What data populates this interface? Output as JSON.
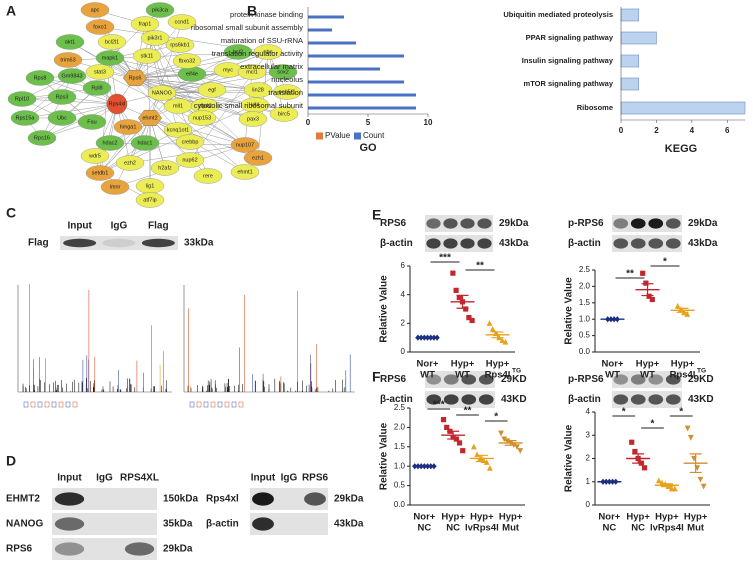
{
  "panel_labels": [
    "A",
    "B",
    "C",
    "D",
    "E",
    "F"
  ],
  "network": {
    "nodes": [
      {
        "label": "apc",
        "color": "#e8a33d"
      },
      {
        "label": "pik3ca",
        "color": "#6cbf4a"
      },
      {
        "label": "foxo1",
        "color": "#e8a33d"
      },
      {
        "label": "frap1",
        "color": "#ecec55"
      },
      {
        "label": "ccnd1",
        "color": "#ecec55"
      },
      {
        "label": "akt1",
        "color": "#6cbf4a"
      },
      {
        "label": "bcl2l1",
        "color": "#ecec55"
      },
      {
        "label": "pik3r1",
        "color": "#ecec55"
      },
      {
        "label": "rps6kb1",
        "color": "#ecec55"
      },
      {
        "label": "trim63",
        "color": "#e8a33d"
      },
      {
        "label": "mapk1",
        "color": "#6cbf4a"
      },
      {
        "label": "stk11",
        "color": "#ecec55"
      },
      {
        "label": "stat3",
        "color": "#ecec55"
      },
      {
        "label": "eif4e",
        "color": "#6cbf4a"
      },
      {
        "label": "fbxo32",
        "color": "#ecec55"
      },
      {
        "label": "Rps6",
        "color": "#e8a33d"
      },
      {
        "label": "bcl2",
        "color": "#6cbf4a"
      },
      {
        "label": "nbn",
        "color": "#ecec55"
      },
      {
        "label": "myc",
        "color": "#ecec55"
      },
      {
        "label": "mcl1",
        "color": "#ecec55"
      },
      {
        "label": "sox2",
        "color": "#6cbf4a"
      },
      {
        "label": "egf",
        "color": "#ecec55"
      },
      {
        "label": "lin28",
        "color": "#ecec55"
      },
      {
        "label": "pou5f1",
        "color": "#ecec55"
      },
      {
        "label": "NANOG",
        "color": "#ecec55"
      },
      {
        "label": "mll1",
        "color": "#ecec55"
      },
      {
        "label": "zfp42",
        "color": "#ecec55"
      },
      {
        "label": "klf4",
        "color": "#ecec55"
      },
      {
        "label": "nup153",
        "color": "#ecec55"
      },
      {
        "label": "pax3",
        "color": "#ecec55"
      },
      {
        "label": "birc5",
        "color": "#ecec55"
      },
      {
        "label": "ehmt2",
        "color": "#e8a33d"
      },
      {
        "label": "hmga1",
        "color": "#e8a33d"
      },
      {
        "label": "hdac2",
        "color": "#6cbf4a"
      },
      {
        "label": "hdac1",
        "color": "#6cbf4a"
      },
      {
        "label": "kcnq1ot1",
        "color": "#ecec55"
      },
      {
        "label": "crebbp",
        "color": "#ecec55"
      },
      {
        "label": "nup62",
        "color": "#ecec55"
      },
      {
        "label": "nup107",
        "color": "#e8a33d"
      },
      {
        "label": "h2afz",
        "color": "#ecec55"
      },
      {
        "label": "ezh2",
        "color": "#ecec55"
      },
      {
        "label": "wdr5",
        "color": "#ecec55"
      },
      {
        "label": "rere",
        "color": "#ecec55"
      },
      {
        "label": "ehmt1",
        "color": "#ecec55"
      },
      {
        "label": "ezh1",
        "color": "#e8a33d"
      },
      {
        "label": "setdb1",
        "color": "#e8a33d"
      },
      {
        "label": "lig1",
        "color": "#ecec55"
      },
      {
        "label": "lmnr",
        "color": "#e8a33d"
      },
      {
        "label": "atf7ip",
        "color": "#ecec55"
      },
      {
        "label": "Rps8",
        "color": "#6cbf4a"
      },
      {
        "label": "Gm9843",
        "color": "#6cbf4a"
      },
      {
        "label": "Rpl10",
        "color": "#6cbf4a"
      },
      {
        "label": "Rps3",
        "color": "#6cbf4a"
      },
      {
        "label": "Rps15a",
        "color": "#6cbf4a"
      },
      {
        "label": "Ubc",
        "color": "#6cbf4a"
      },
      {
        "label": "Fau",
        "color": "#6cbf4a"
      },
      {
        "label": "Rps16",
        "color": "#6cbf4a"
      },
      {
        "label": "Rpl8",
        "color": "#6cbf4a"
      },
      {
        "label": "Rps4xl",
        "color": "#e2502f"
      }
    ]
  },
  "chart_data": [
    {
      "type": "hbar",
      "title": "GO",
      "categories": [
        "protein kinase binding",
        "ribosomal small subunit assembly",
        "maturation of SSU-rRNA",
        "translation regulator activity",
        "extracellular matrix",
        "nucleolus",
        "translation",
        "cytosolic small ribosomal subunit"
      ],
      "series": [
        {
          "name": "PValue",
          "color": "#e07b39",
          "values": [
            null,
            null,
            null,
            null,
            null,
            null,
            null,
            null
          ]
        },
        {
          "name": "Count",
          "color": "#4a72c4",
          "values": [
            3,
            2,
            4,
            8,
            6,
            8,
            9,
            9
          ]
        }
      ],
      "xlim": [
        0,
        10
      ],
      "xticks": [
        0,
        5,
        10
      ]
    },
    {
      "type": "hbar",
      "title": "KEGG",
      "categories": [
        "Ubiquitin mediated proteolysis",
        "PPAR signaling pathway",
        "Insulin signaling pathway",
        "mTOR signaling pathway",
        "Ribosome"
      ],
      "values": [
        1,
        2,
        1,
        1,
        7
      ],
      "color": "#bcd3f0",
      "xlim": [
        0,
        7
      ],
      "xticks": [
        0,
        2,
        4,
        6
      ]
    },
    {
      "type": "dotplot",
      "ylabel": "Relative Value",
      "ylim": [
        0,
        6
      ],
      "yticks": [
        0,
        2,
        4,
        6
      ],
      "significance": [
        "***",
        "**"
      ],
      "groups": [
        {
          "label_lines": [
            "Nor+",
            "WT"
          ],
          "color": "#1c2f80",
          "marker": "diamond",
          "values": [
            1,
            1,
            1,
            1,
            1,
            1,
            1
          ],
          "mean": 1,
          "sem": 0.02
        },
        {
          "label_lines": [
            "Hyp+",
            "WT"
          ],
          "color": "#c1272d",
          "marker": "square",
          "values": [
            5.5,
            4.3,
            3.8,
            3.5,
            3.0,
            2.4,
            2.2
          ],
          "mean": 3.5,
          "sem": 0.45
        },
        {
          "label_lines": [
            "Hyp+",
            "Rps4l"
          ],
          "sup": "TG",
          "color": "#e8a11b",
          "marker": "triangle",
          "values": [
            2.0,
            1.6,
            1.3,
            1.0,
            0.8,
            0.7
          ],
          "mean": 1.2,
          "sem": 0.2
        }
      ]
    },
    {
      "type": "dotplot",
      "ylabel": "Relative Value",
      "ylim": [
        0,
        2.5
      ],
      "yticks": [
        {
          "value": 0,
          "label": "0.0"
        },
        {
          "value": 0.5,
          "label": "0.5"
        },
        {
          "value": 1,
          "label": "1.0"
        },
        {
          "value": 1.5,
          "label": "1.5"
        },
        {
          "value": 2,
          "label": "2.0"
        },
        {
          "value": 2.5,
          "label": "2.5"
        }
      ],
      "significance": [
        "**",
        "*"
      ],
      "groups": [
        {
          "label_lines": [
            "Nor+",
            "WT"
          ],
          "color": "#1c2f80",
          "marker": "diamond",
          "values": [
            1,
            1,
            1,
            1
          ],
          "mean": 1,
          "sem": 0.01
        },
        {
          "label_lines": [
            "Hyp+",
            "WT"
          ],
          "color": "#c1272d",
          "marker": "square",
          "values": [
            2.4,
            2.1,
            1.7,
            1.6
          ],
          "mean": 1.9,
          "sem": 0.18
        },
        {
          "label_lines": [
            "Hyp+",
            "Rps4l"
          ],
          "sup": "TG",
          "color": "#e8a11b",
          "marker": "triangle",
          "values": [
            1.4,
            1.3,
            1.2,
            1.15
          ],
          "mean": 1.27,
          "sem": 0.06
        }
      ]
    },
    {
      "type": "dotplot",
      "ylabel": "Relative Value",
      "ylim": [
        0,
        2.5
      ],
      "yticks": [
        {
          "value": 0,
          "label": "0.0"
        },
        {
          "value": 0.5,
          "label": "0.5"
        },
        {
          "value": 1,
          "label": "1.0"
        },
        {
          "value": 1.5,
          "label": "1.5"
        },
        {
          "value": 2,
          "label": "2.0"
        },
        {
          "value": 2.5,
          "label": "2.5"
        }
      ],
      "significance": [
        "***",
        "**",
        "*"
      ],
      "groups": [
        {
          "label_lines": [
            "Nor+",
            "NC"
          ],
          "color": "#1c2f80",
          "marker": "diamond",
          "values": [
            1,
            1,
            1,
            1,
            1,
            1,
            1
          ],
          "mean": 1,
          "sem": 0.01
        },
        {
          "label_lines": [
            "Hyp+",
            "NC"
          ],
          "color": "#c1272d",
          "marker": "square",
          "values": [
            2.2,
            2.0,
            1.9,
            1.75,
            1.7,
            1.6,
            1.4
          ],
          "mean": 1.8,
          "sem": 0.1
        },
        {
          "label_lines": [
            "Hyp+",
            "lvRps4l"
          ],
          "color": "#e8a11b",
          "marker": "triangle",
          "values": [
            1.5,
            1.3,
            1.2,
            1.15,
            1.1,
            0.95
          ],
          "mean": 1.2,
          "sem": 0.08
        },
        {
          "label_lines": [
            "Hyp+",
            "Mut"
          ],
          "color": "#d18f2c",
          "marker": "triangle-down",
          "values": [
            1.85,
            1.7,
            1.65,
            1.6,
            1.55,
            1.5,
            1.4
          ],
          "mean": 1.6,
          "sem": 0.06
        }
      ]
    },
    {
      "type": "dotplot",
      "ylabel": "Relative Value",
      "ylim": [
        0,
        4
      ],
      "yticks": [
        0,
        1,
        2,
        3,
        4
      ],
      "significance": [
        "*",
        "*",
        "*"
      ],
      "groups": [
        {
          "label_lines": [
            "Nor+",
            "NC"
          ],
          "color": "#1c2f80",
          "marker": "diamond",
          "values": [
            1,
            1,
            1,
            1,
            1
          ],
          "mean": 1,
          "sem": 0.01
        },
        {
          "label_lines": [
            "Hyp+",
            "NC"
          ],
          "color": "#c1272d",
          "marker": "square",
          "values": [
            2.7,
            2.3,
            2.0,
            1.8,
            1.6
          ],
          "mean": 2.0,
          "sem": 0.2
        },
        {
          "label_lines": [
            "Hyp+",
            "lvRps4l"
          ],
          "color": "#e8a11b",
          "marker": "triangle",
          "values": [
            1.05,
            0.95,
            0.9,
            0.8,
            0.7,
            0.7
          ],
          "mean": 0.85,
          "sem": 0.06
        },
        {
          "label_lines": [
            "Hyp+",
            "Mut"
          ],
          "color": "#d18f2c",
          "marker": "triangle-down",
          "values": [
            3.3,
            2.9,
            2.0,
            1.6,
            1.1,
            0.8
          ],
          "mean": 1.8,
          "sem": 0.4
        }
      ]
    }
  ],
  "blots": [
    {
      "lanes": [
        "Input",
        "IgG",
        "Flag"
      ],
      "rows": [
        {
          "label": "Flag",
          "size": "33kDa"
        }
      ]
    },
    {
      "lanes": [
        "Input",
        "IgG",
        "RPS4XL"
      ],
      "rows": [
        {
          "label": "EHMT2",
          "size": "150kDa"
        },
        {
          "label": "NANOG",
          "size": "35kDa"
        },
        {
          "label": "RPS6",
          "size": "29kDa"
        }
      ]
    },
    {
      "lanes": [
        "Input",
        "IgG",
        "RPS6"
      ],
      "rows": [
        {
          "label": "Rps4xl",
          "size": "29kDa"
        },
        {
          "label": "β-actin",
          "size": "43kDa"
        }
      ]
    },
    {
      "rows": [
        {
          "label": "RPS6",
          "size": "29kDa"
        },
        {
          "label": "β-actin",
          "size": "43kDa"
        }
      ]
    },
    {
      "rows": [
        {
          "label": "p-RPS6",
          "size": "29kDa"
        },
        {
          "label": "β-actin",
          "size": "43kDa"
        }
      ]
    },
    {
      "rows": [
        {
          "label": "RPS6",
          "size": "29KD"
        },
        {
          "label": "β-actin",
          "size": "43KD"
        }
      ]
    },
    {
      "rows": [
        {
          "label": "p-RPS6",
          "size": "29KD"
        },
        {
          "label": "β-actin",
          "size": "43KD"
        }
      ]
    }
  ]
}
